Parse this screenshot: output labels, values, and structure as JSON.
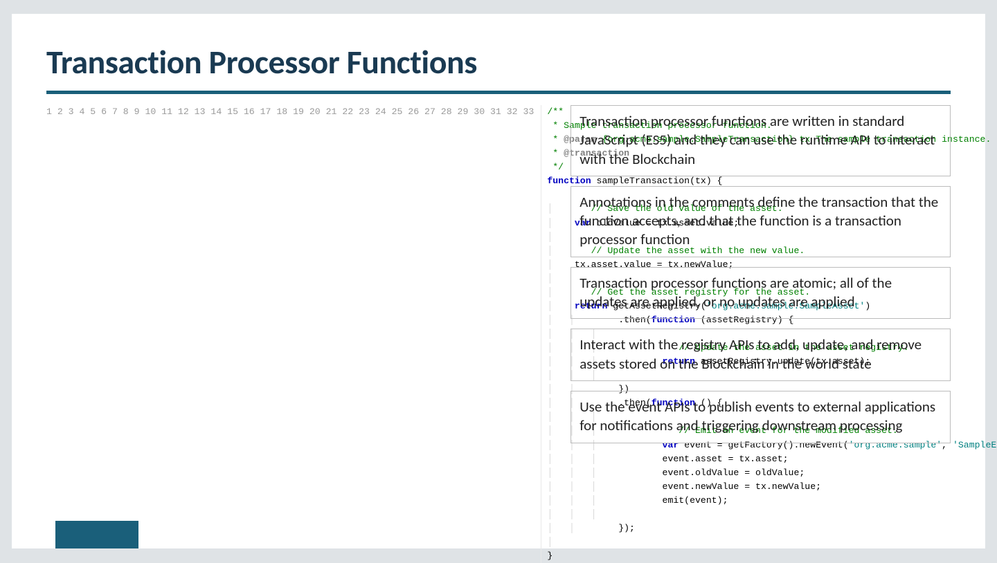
{
  "title": "Transaction Processor Functions",
  "colors": {
    "page_bg": "#dfe3e6",
    "slide_bg": "#ffffff",
    "title_color": "#1a3a52",
    "underline_color": "#1a5f7a",
    "note_border": "#bcbcbc",
    "note_text": "#222222",
    "gutter_text": "#9a9a9a",
    "comment": "#008000",
    "keyword": "#0000c0",
    "string": "#008080",
    "accent_box": "#1a5f7a"
  },
  "code": {
    "line_count": 33,
    "lines": {
      "l1": "/**",
      "l2": " * Sample transaction processor function.",
      "l3a": " * ",
      "l3b": "@param",
      "l3c": " {org.acme.sample.SampleTransaction} tx The sample transaction instance.",
      "l4a": " * ",
      "l4b": "@transaction",
      "l5": " */",
      "l6a": "function",
      "l6b": " sampleTransaction(tx) {",
      "l7": "",
      "l8": "    // Save the old value of the asset.",
      "l9a": "    ",
      "l9b": "var",
      "l9c": " oldValue = tx.asset.value;",
      "l10": "",
      "l11": "    // Update the asset with the new value.",
      "l12": "    tx.asset.value = tx.newValue;",
      "l13": "",
      "l14": "    // Get the asset registry for the asset.",
      "l15a": "    ",
      "l15b": "return",
      "l15c": " getAssetRegistry(",
      "l15d": "'org.acme.sample.SampleAsset'",
      "l15e": ")",
      "l16a": "        .then(",
      "l16b": "function",
      "l16c": " (assetRegistry) {",
      "l17": "",
      "l18": "            // Update the asset in the asset registry.",
      "l19a": "            ",
      "l19b": "return",
      "l19c": " assetRegistry.update(tx.asset);",
      "l20": "",
      "l21": "        })",
      "l22a": "        .then(",
      "l22b": "function",
      "l22c": " () {",
      "l23": "",
      "l24": "            // Emit an event for the modified asset.",
      "l25a": "            ",
      "l25b": "var",
      "l25c": " event = getFactory().newEvent(",
      "l25d": "'org.acme.sample'",
      "l25e": ", ",
      "l25f": "'SampleEvent'",
      "l25g": ");",
      "l26": "            event.asset = tx.asset;",
      "l27": "            event.oldValue = oldValue;",
      "l28": "            event.newValue = tx.newValue;",
      "l29": "            emit(event);",
      "l30": "",
      "l31": "        });",
      "l32": "",
      "l33": "}"
    }
  },
  "notes": {
    "n1": "Transaction processor functions are written in standard JavaScript (ES5) and they can use the runtime API to interact with the Blockchain",
    "n2": "Annotations in the comments define the transaction that the function accepts, and that the function is a transaction processor function",
    "n3": "Transaction processor functions are atomic; all of the updates are applied, or no updates are applied",
    "n4": "Interact with the registry APIs to add, update, and remove assets stored on the Blockchain in the world state",
    "n5": "Use the event APIs to publish events to external applications for notifications and triggering downstream processing"
  }
}
